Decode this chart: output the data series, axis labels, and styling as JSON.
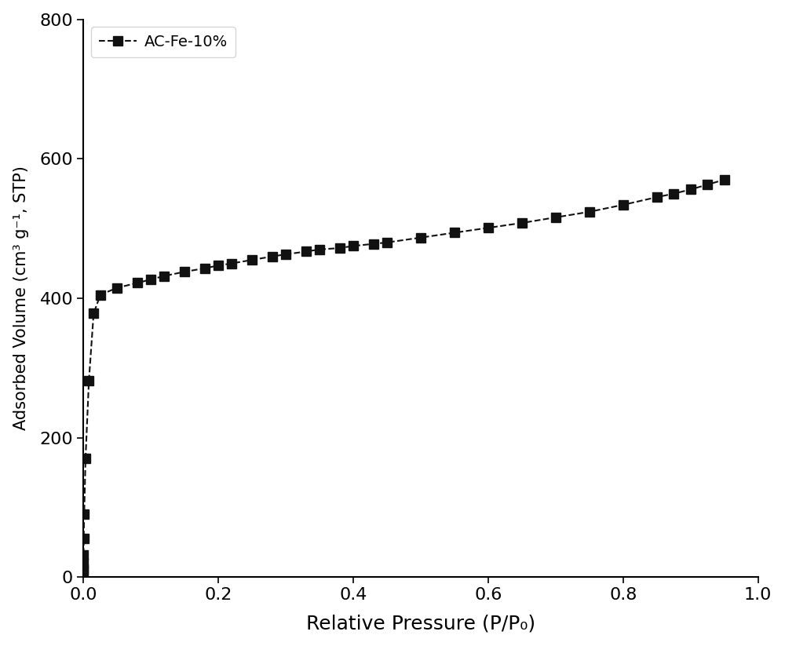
{
  "x": [
    5e-06,
    1e-05,
    3e-05,
    0.0001,
    0.0003,
    0.001,
    0.003,
    0.008,
    0.015,
    0.025,
    0.05,
    0.08,
    0.1,
    0.12,
    0.15,
    0.18,
    0.2,
    0.22,
    0.25,
    0.28,
    0.3,
    0.33,
    0.35,
    0.38,
    0.4,
    0.43,
    0.45,
    0.5,
    0.55,
    0.6,
    0.65,
    0.7,
    0.75,
    0.8,
    0.85,
    0.875,
    0.9,
    0.925,
    0.95
  ],
  "y": [
    8,
    12,
    20,
    32,
    55,
    90,
    170,
    282,
    378,
    405,
    415,
    422,
    427,
    432,
    438,
    443,
    447,
    450,
    455,
    460,
    463,
    467,
    470,
    472,
    475,
    478,
    480,
    487,
    494,
    501,
    508,
    516,
    524,
    534,
    545,
    550,
    556,
    563,
    570
  ],
  "line_color": "#111111",
  "marker": "s",
  "markersize": 9,
  "linewidth": 1.5,
  "linestyle": "--",
  "legend_label": "AC-Fe-10%",
  "xlabel": "Relative Pressure (P/P₀)",
  "ylabel": "Adsorbed Volume (cm³ g⁻¹, STP)",
  "xlim": [
    0.0,
    1.0
  ],
  "ylim": [
    0,
    800
  ],
  "yticks": [
    0,
    200,
    400,
    600,
    800
  ],
  "xticks": [
    0.0,
    0.2,
    0.4,
    0.6,
    0.8,
    1.0
  ],
  "xlabel_fontsize": 18,
  "ylabel_fontsize": 15,
  "tick_fontsize": 16,
  "legend_fontsize": 14,
  "background_color": "#ffffff"
}
